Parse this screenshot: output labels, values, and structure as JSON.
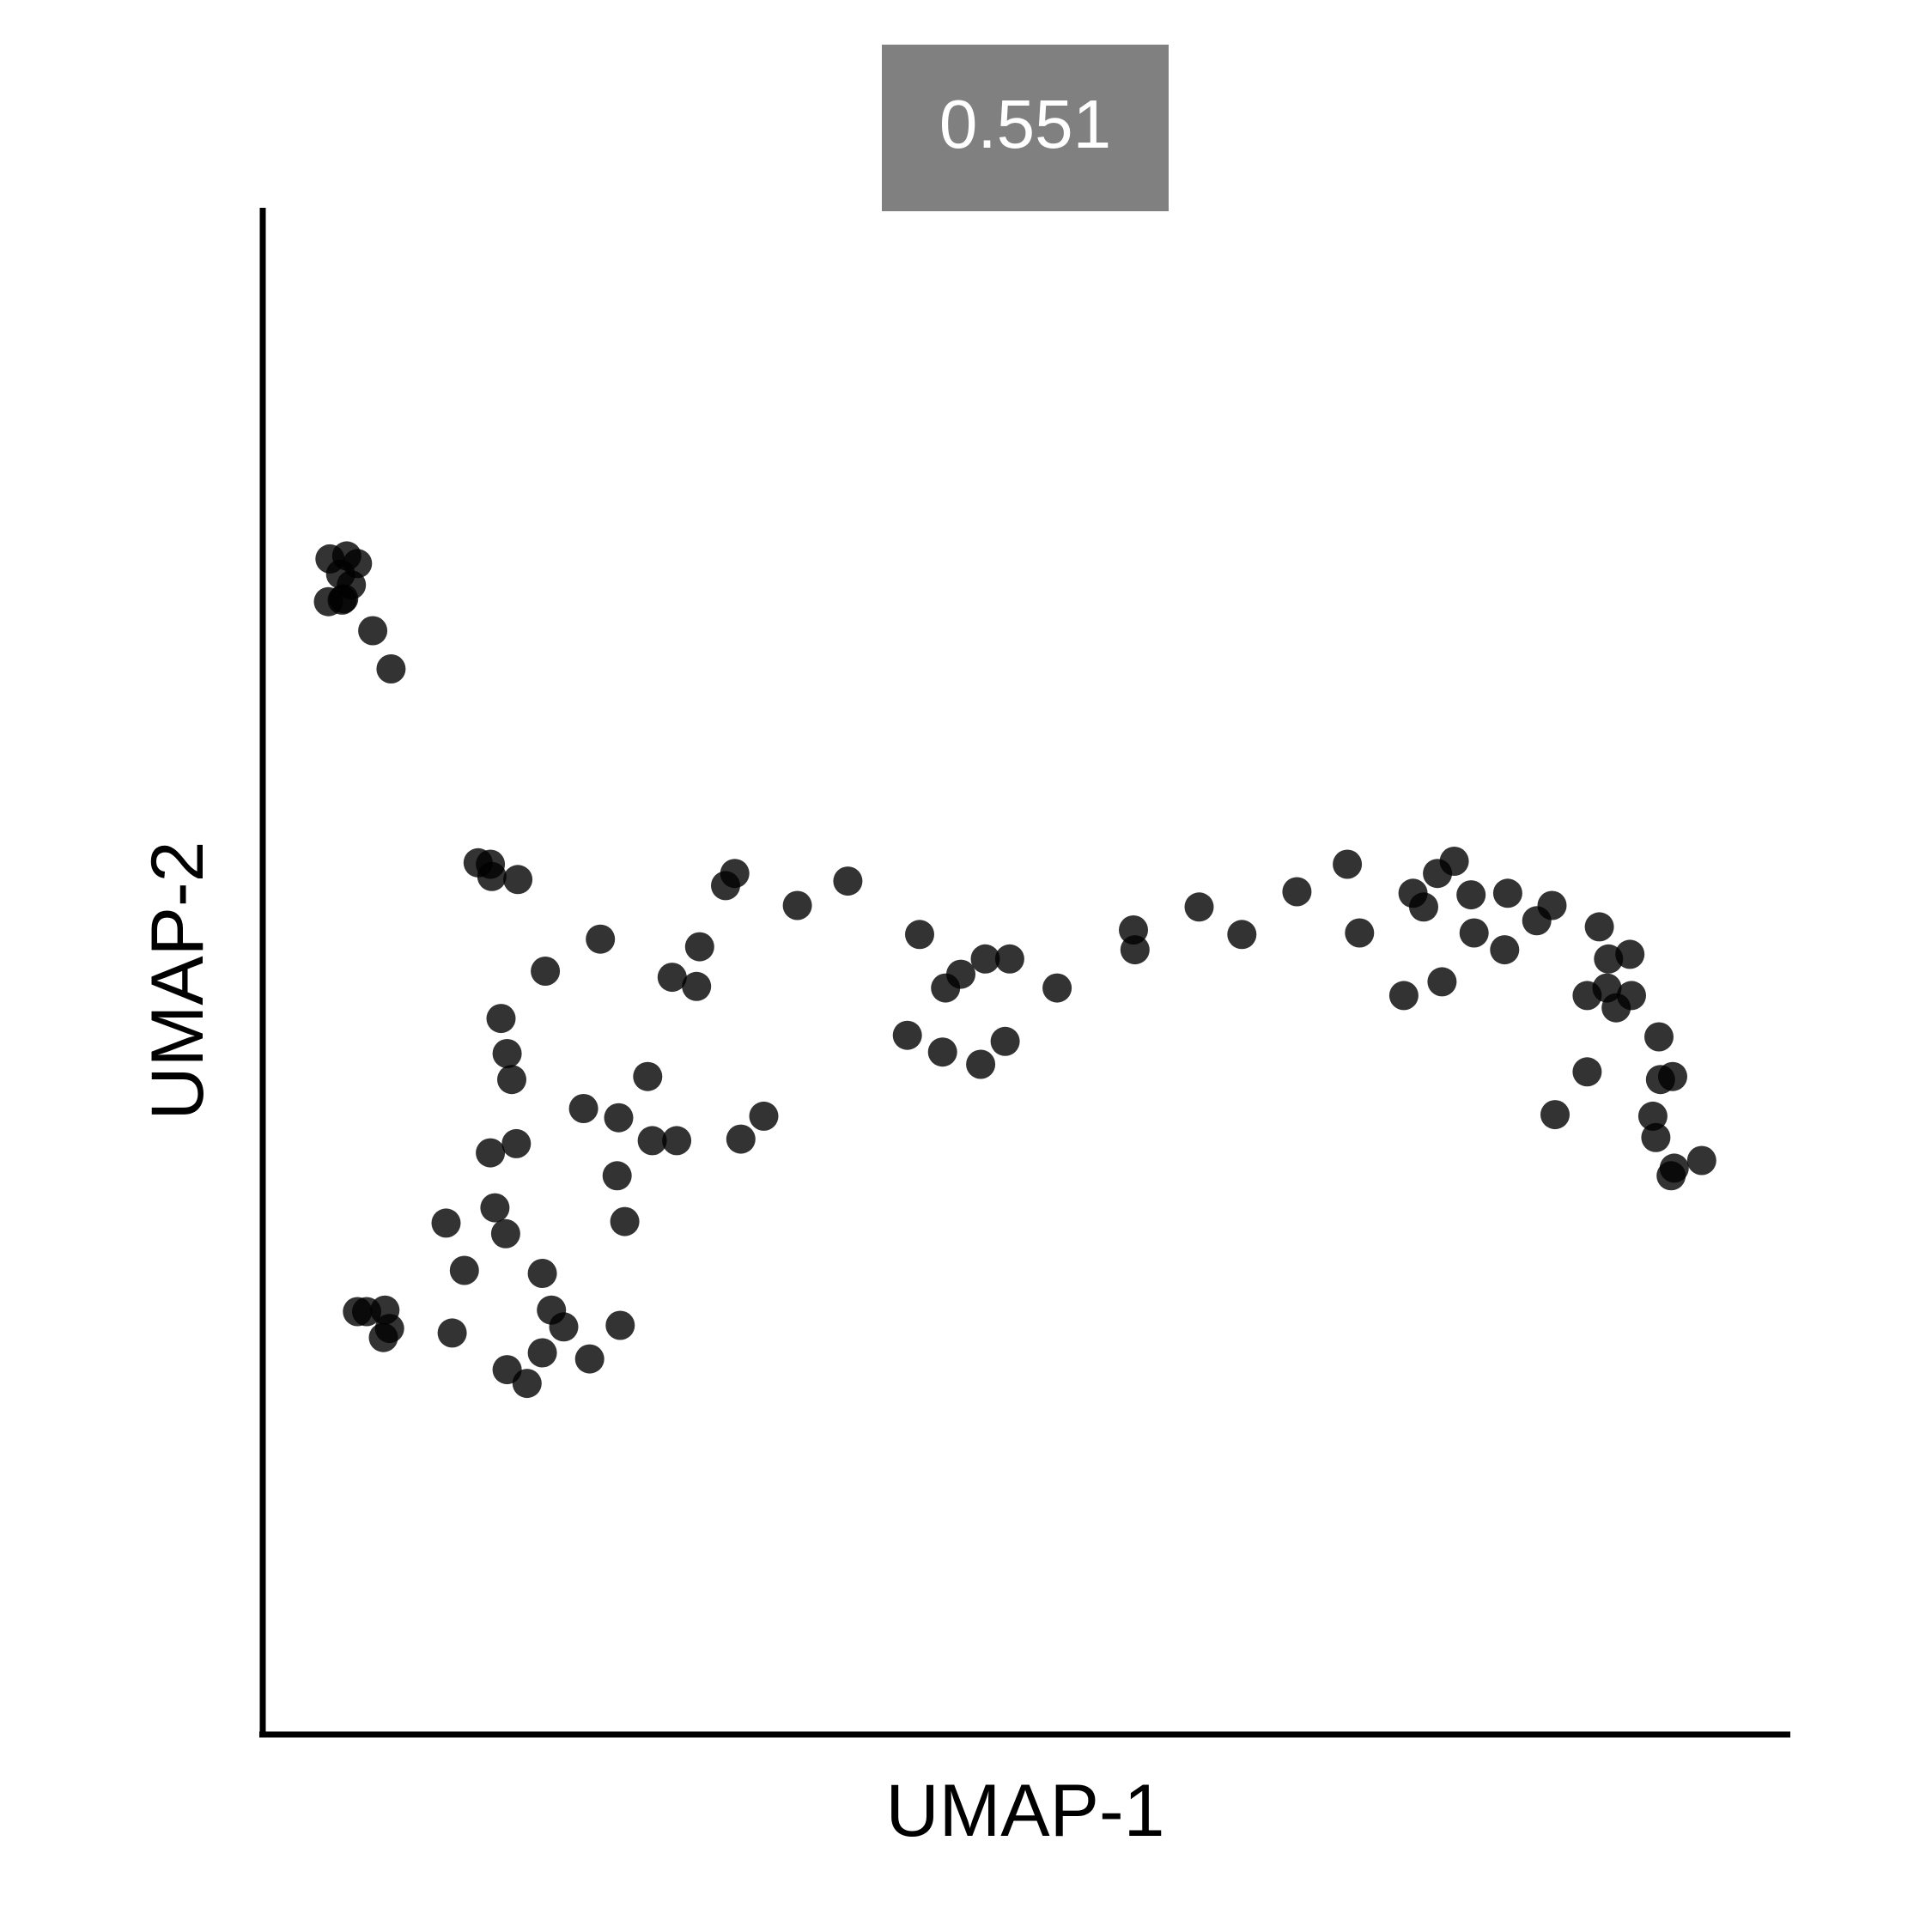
{
  "chart_data": {
    "type": "scatter",
    "title": "0.551",
    "xlabel": "UMAP-1",
    "ylabel": "UMAP-2",
    "xlim": [
      0,
      100
    ],
    "ylim": [
      0,
      100
    ],
    "grid": false,
    "point_color": "#000000",
    "title_box_color": "#808080",
    "points": [
      [
        4.4,
        77.0
      ],
      [
        5.5,
        77.2
      ],
      [
        5.1,
        76.0
      ],
      [
        6.2,
        76.7
      ],
      [
        5.8,
        75.3
      ],
      [
        4.3,
        74.2
      ],
      [
        5.3,
        74.4
      ],
      [
        5.2,
        74.3
      ],
      [
        7.2,
        72.3
      ],
      [
        8.4,
        69.8
      ],
      [
        14.1,
        57.1
      ],
      [
        14.9,
        57.0
      ],
      [
        15.0,
        56.2
      ],
      [
        16.7,
        56.0
      ],
      [
        18.5,
        50.0
      ],
      [
        22.1,
        52.1
      ],
      [
        15.6,
        46.9
      ],
      [
        16.0,
        44.6
      ],
      [
        16.3,
        42.9
      ],
      [
        14.9,
        38.1
      ],
      [
        16.6,
        38.7
      ],
      [
        12.0,
        33.5
      ],
      [
        15.2,
        34.5
      ],
      [
        15.9,
        32.8
      ],
      [
        13.2,
        30.4
      ],
      [
        18.3,
        30.2
      ],
      [
        6.2,
        27.7
      ],
      [
        6.8,
        27.7
      ],
      [
        8.0,
        27.8
      ],
      [
        8.3,
        26.6
      ],
      [
        7.9,
        26.0
      ],
      [
        12.4,
        26.3
      ],
      [
        18.9,
        27.8
      ],
      [
        19.7,
        26.7
      ],
      [
        18.3,
        25.0
      ],
      [
        16.0,
        23.9
      ],
      [
        17.3,
        23.0
      ],
      [
        21.4,
        24.6
      ],
      [
        23.4,
        26.8
      ],
      [
        21.0,
        41.0
      ],
      [
        23.3,
        40.4
      ],
      [
        23.2,
        36.6
      ],
      [
        23.7,
        33.6
      ],
      [
        25.2,
        43.1
      ],
      [
        25.5,
        38.9
      ],
      [
        27.1,
        38.9
      ],
      [
        26.8,
        49.6
      ],
      [
        28.4,
        49.0
      ],
      [
        28.6,
        51.6
      ],
      [
        30.3,
        55.6
      ],
      [
        30.9,
        56.4
      ],
      [
        35.0,
        54.3
      ],
      [
        38.3,
        55.9
      ],
      [
        31.3,
        39.0
      ],
      [
        32.8,
        40.5
      ],
      [
        43.0,
        52.4
      ],
      [
        44.7,
        48.9
      ],
      [
        45.7,
        49.8
      ],
      [
        42.2,
        45.8
      ],
      [
        44.5,
        44.7
      ],
      [
        47.3,
        50.8
      ],
      [
        48.9,
        50.8
      ],
      [
        47.0,
        43.9
      ],
      [
        48.6,
        45.4
      ],
      [
        52.0,
        48.9
      ],
      [
        57.0,
        52.7
      ],
      [
        57.1,
        51.4
      ],
      [
        61.3,
        54.2
      ],
      [
        64.1,
        52.4
      ],
      [
        67.7,
        55.2
      ],
      [
        71.0,
        57.0
      ],
      [
        71.8,
        52.5
      ],
      [
        75.3,
        55.1
      ],
      [
        76.0,
        54.2
      ],
      [
        76.9,
        56.4
      ],
      [
        78.0,
        57.2
      ],
      [
        79.1,
        55.0
      ],
      [
        79.3,
        52.5
      ],
      [
        81.5,
        55.1
      ],
      [
        81.3,
        51.4
      ],
      [
        74.7,
        48.4
      ],
      [
        77.2,
        49.3
      ],
      [
        83.4,
        53.3
      ],
      [
        84.4,
        54.3
      ],
      [
        87.5,
        52.9
      ],
      [
        88.1,
        50.8
      ],
      [
        89.5,
        51.1
      ],
      [
        86.7,
        48.4
      ],
      [
        88.0,
        48.9
      ],
      [
        89.6,
        48.4
      ],
      [
        88.6,
        47.6
      ],
      [
        91.4,
        45.7
      ],
      [
        91.5,
        42.9
      ],
      [
        92.3,
        43.1
      ],
      [
        91.0,
        40.5
      ],
      [
        91.2,
        39.1
      ],
      [
        92.4,
        37.1
      ],
      [
        92.2,
        36.6
      ],
      [
        94.2,
        37.6
      ],
      [
        84.6,
        40.6
      ],
      [
        86.7,
        43.4
      ]
    ]
  }
}
